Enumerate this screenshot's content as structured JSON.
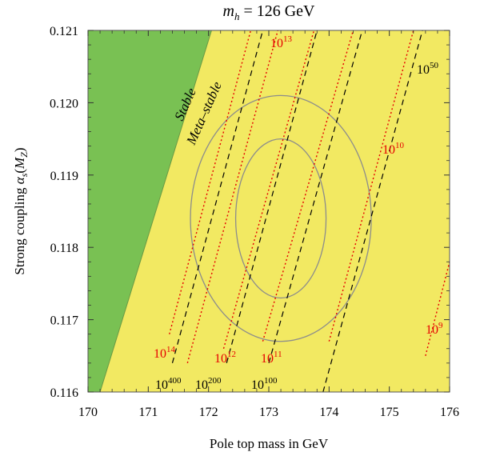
{
  "chart_data": {
    "type": "contour",
    "title": "m_h = 126 GeV",
    "title_parts": {
      "var": "m",
      "sub": "h",
      "rest": " = 126 GeV"
    },
    "xlabel": "Pole top mass in GeV",
    "ylabel": "Strong coupling α_s(M_Z)",
    "ylabel_parts": {
      "main": "Strong coupling ",
      "sym": "α",
      "sub1": "s",
      "open": "(",
      "arg": "M",
      "sub2": "Z",
      "close": ")"
    },
    "xlim": [
      170,
      176
    ],
    "ylim": [
      0.116,
      0.121
    ],
    "x_ticks": [
      "170",
      "171",
      "172",
      "173",
      "174",
      "175",
      "176"
    ],
    "y_ticks": [
      "0.116",
      "0.117",
      "0.118",
      "0.119",
      "0.120",
      "0.121"
    ],
    "x_tick_values": [
      170,
      171,
      172,
      173,
      174,
      175,
      176
    ],
    "y_tick_values": [
      0.116,
      0.117,
      0.118,
      0.119,
      0.12,
      0.121
    ],
    "colors": {
      "stable": "#79c153",
      "metastable": "#f2e962",
      "red_dotted": "#e60000",
      "black_dashed": "#000000",
      "ellipse": "#8c8c8c"
    },
    "regions": [
      {
        "name": "Stable",
        "label": "Stable",
        "boundary": [
          [
            170.0,
            0.116
          ],
          [
            170.2,
            0.116
          ],
          [
            172.05,
            0.121
          ],
          [
            170.0,
            0.121
          ]
        ]
      },
      {
        "name": "Meta-stable",
        "label": "Meta–stable"
      }
    ],
    "black_dashed_lines": [
      {
        "label_base": "10",
        "label_exp": "400",
        "p1": [
          171.4,
          0.1164
        ],
        "p2": [
          172.9,
          0.121
        ]
      },
      {
        "label_base": "10",
        "label_exp": "200",
        "p1": [
          172.3,
          0.1164
        ],
        "p2": [
          173.8,
          0.121
        ]
      },
      {
        "label_base": "10",
        "label_exp": "100",
        "p1": [
          173.0,
          0.1164
        ],
        "p2": [
          174.55,
          0.121
        ]
      },
      {
        "label_base": "10",
        "label_exp": "50",
        "p1": [
          173.9,
          0.116
        ],
        "p2": [
          175.55,
          0.121
        ]
      }
    ],
    "red_dotted_lines": [
      {
        "label_base": "10",
        "label_exp": "14",
        "p1": [
          171.35,
          0.1168
        ],
        "p2": [
          172.7,
          0.121
        ]
      },
      {
        "label_base": "10",
        "label_exp": "13",
        "p1": [
          171.65,
          0.1164
        ],
        "p2": [
          173.15,
          0.121
        ]
      },
      {
        "label_base": "10",
        "label_exp": "12",
        "p1": [
          172.25,
          0.1166
        ],
        "p2": [
          173.75,
          0.121
        ]
      },
      {
        "label_base": "10",
        "label_exp": "11",
        "p1": [
          172.9,
          0.1167
        ],
        "p2": [
          174.4,
          0.121
        ]
      },
      {
        "label_base": "10",
        "label_exp": "10",
        "p1": [
          174.0,
          0.1167
        ],
        "p2": [
          175.4,
          0.121
        ]
      },
      {
        "label_base": "10",
        "label_exp": "9",
        "p1": [
          175.6,
          0.1165
        ],
        "p2": [
          176.0,
          0.1178
        ]
      }
    ],
    "ellipses": [
      {
        "cx": 173.2,
        "cy": 0.1184,
        "rx": 0.75,
        "ry": 0.0011
      },
      {
        "cx": 173.2,
        "cy": 0.1184,
        "rx": 1.5,
        "ry": 0.0017
      }
    ]
  }
}
